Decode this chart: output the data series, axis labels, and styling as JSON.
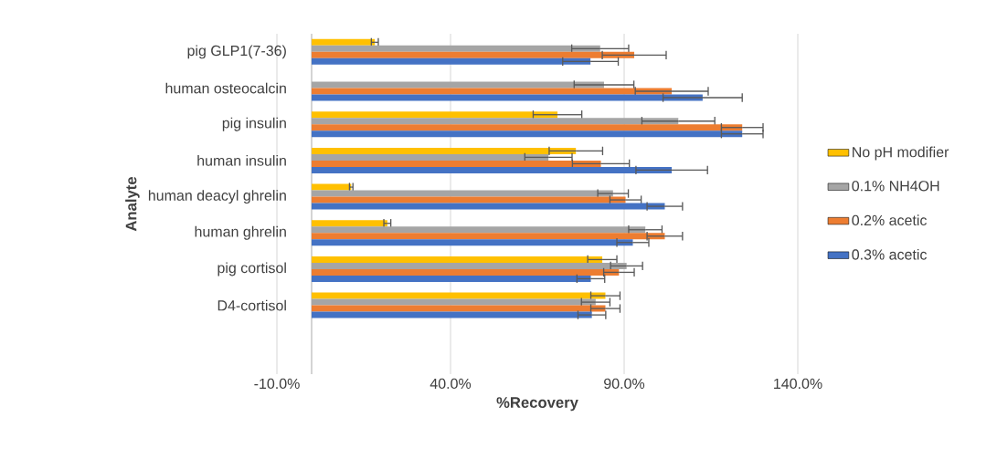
{
  "chart_data": {
    "type": "bar",
    "orientation": "horizontal",
    "xlabel": "%Recovery",
    "ylabel": "Analyte",
    "categories": [
      "pig GLP1(7-36)",
      "human osteocalcin",
      "pig insulin",
      "human insulin",
      "human deacyl ghrelin",
      "human ghrelin",
      "pig cortisol",
      "D4-cortisol"
    ],
    "series": [
      {
        "name": "No pH modifier",
        "color": "#ffc000",
        "values": [
          18.2,
          null,
          70.8,
          76.1,
          11.4,
          21.8,
          83.7,
          84.6
        ],
        "errors": [
          1,
          null,
          7,
          7.7,
          0.5,
          1,
          4.2,
          4.2
        ]
      },
      {
        "name": "0.1% NH4OH",
        "color": "#a5a5a5",
        "values": [
          83.1,
          84.2,
          105.6,
          68.2,
          86.8,
          96.1,
          90.7,
          81.8
        ],
        "errors": [
          8.2,
          8.6,
          10.5,
          6.8,
          4.4,
          4.8,
          4.6,
          4.1
        ]
      },
      {
        "name": "0.2% acetic",
        "color": "#ed7d31",
        "values": [
          92.9,
          103.7,
          124,
          83.3,
          90.4,
          101.7,
          88.5,
          84.6
        ],
        "errors": [
          9.2,
          10.5,
          6,
          8.2,
          4.5,
          5.1,
          4.4,
          4.2
        ]
      },
      {
        "name": "0.3% acetic",
        "color": "#4472c4",
        "values": [
          80.3,
          112.6,
          124,
          103.7,
          101.7,
          92.5,
          80.4,
          80.7
        ],
        "errors": [
          8,
          11.4,
          6,
          10.3,
          5.1,
          4.6,
          4,
          4
        ]
      }
    ],
    "xlim": [
      -10,
      140
    ],
    "xticks": [
      {
        "value": -10,
        "label": "-10.0%"
      },
      {
        "value": 40,
        "label": "40.0%"
      },
      {
        "value": 90,
        "label": "90.0%"
      },
      {
        "value": 140,
        "label": "140.0%"
      }
    ],
    "grid": "x",
    "legend": "right"
  }
}
